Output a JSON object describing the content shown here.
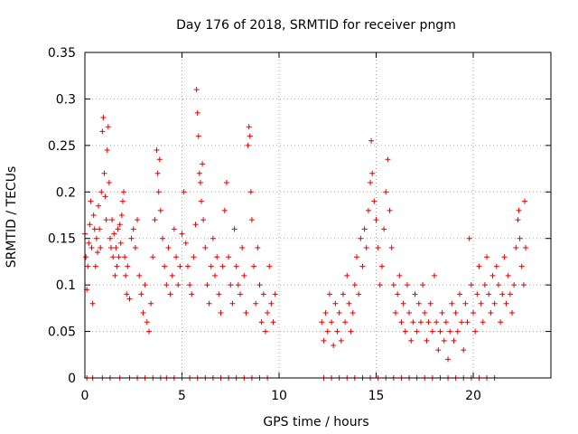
{
  "chart_data": {
    "type": "scatter",
    "title": "Day 176 of 2018, SRMTID for receiver pngm",
    "xlabel": "GPS time / hours",
    "ylabel": "SRMTID / TECUs",
    "xlim": [
      0,
      24
    ],
    "ylim": [
      0,
      0.35
    ],
    "x_ticks": [
      "0",
      "5",
      "10",
      "15",
      "20"
    ],
    "x_tick_values": [
      0,
      5,
      10,
      15,
      20
    ],
    "y_ticks": [
      "0",
      "0.05",
      "0.1",
      "0.15",
      "0.2",
      "0.25",
      "0.3",
      "0.35"
    ],
    "y_tick_values": [
      0,
      0.05,
      0.1,
      0.15,
      0.2,
      0.25,
      0.3,
      0.35
    ],
    "grid": true,
    "marker": "+",
    "color": "#e00000",
    "series": [
      {
        "name": "SRMTID",
        "points": [
          [
            0.0,
            0.155
          ],
          [
            0.05,
            0.13
          ],
          [
            0.1,
            0.095
          ],
          [
            0.15,
            0.12
          ],
          [
            0.2,
            0.145
          ],
          [
            0.25,
            0.165
          ],
          [
            0.3,
            0.19
          ],
          [
            0.35,
            0.14
          ],
          [
            0.4,
            0.08
          ],
          [
            0.45,
            0.175
          ],
          [
            0.5,
            0.16
          ],
          [
            0.55,
            0.12
          ],
          [
            0.6,
            0.15
          ],
          [
            0.65,
            0.135
          ],
          [
            0.7,
            0.185
          ],
          [
            0.75,
            0.16
          ],
          [
            0.8,
            0.14
          ],
          [
            0.85,
            0.2
          ],
          [
            0.9,
            0.265
          ],
          [
            0.95,
            0.28
          ],
          [
            1.0,
            0.22
          ],
          [
            1.05,
            0.195
          ],
          [
            1.1,
            0.17
          ],
          [
            1.15,
            0.245
          ],
          [
            1.2,
            0.27
          ],
          [
            1.25,
            0.21
          ],
          [
            1.3,
            0.15
          ],
          [
            1.35,
            0.14
          ],
          [
            1.4,
            0.17
          ],
          [
            1.45,
            0.13
          ],
          [
            1.5,
            0.155
          ],
          [
            1.55,
            0.11
          ],
          [
            1.6,
            0.14
          ],
          [
            1.65,
            0.12
          ],
          [
            1.7,
            0.16
          ],
          [
            1.75,
            0.13
          ],
          [
            1.8,
            0.165
          ],
          [
            1.85,
            0.145
          ],
          [
            1.9,
            0.175
          ],
          [
            1.95,
            0.19
          ],
          [
            2.0,
            0.2
          ],
          [
            2.05,
            0.13
          ],
          [
            2.1,
            0.11
          ],
          [
            2.15,
            0.09
          ],
          [
            2.2,
            0.12
          ],
          [
            2.3,
            0.085
          ],
          [
            2.4,
            0.15
          ],
          [
            2.5,
            0.16
          ],
          [
            2.6,
            0.14
          ],
          [
            2.7,
            0.17
          ],
          [
            2.8,
            0.11
          ],
          [
            2.9,
            0.09
          ],
          [
            3.0,
            0.07
          ],
          [
            3.1,
            0.1
          ],
          [
            3.2,
            0.06
          ],
          [
            3.3,
            0.05
          ],
          [
            3.4,
            0.08
          ],
          [
            3.5,
            0.13
          ],
          [
            3.6,
            0.17
          ],
          [
            3.7,
            0.245
          ],
          [
            3.75,
            0.22
          ],
          [
            3.8,
            0.2
          ],
          [
            3.85,
            0.235
          ],
          [
            3.9,
            0.18
          ],
          [
            4.0,
            0.15
          ],
          [
            4.1,
            0.12
          ],
          [
            4.2,
            0.1
          ],
          [
            4.3,
            0.14
          ],
          [
            4.4,
            0.09
          ],
          [
            4.5,
            0.11
          ],
          [
            4.6,
            0.16
          ],
          [
            4.7,
            0.13
          ],
          [
            4.8,
            0.1
          ],
          [
            4.9,
            0.12
          ],
          [
            5.0,
            0.155
          ],
          [
            5.1,
            0.2
          ],
          [
            5.2,
            0.145
          ],
          [
            5.3,
            0.12
          ],
          [
            5.4,
            0.1
          ],
          [
            5.5,
            0.09
          ],
          [
            5.6,
            0.13
          ],
          [
            5.7,
            0.165
          ],
          [
            5.75,
            0.31
          ],
          [
            5.8,
            0.285
          ],
          [
            5.85,
            0.26
          ],
          [
            5.9,
            0.22
          ],
          [
            5.95,
            0.21
          ],
          [
            6.0,
            0.19
          ],
          [
            6.05,
            0.23
          ],
          [
            6.1,
            0.17
          ],
          [
            6.2,
            0.14
          ],
          [
            6.3,
            0.1
          ],
          [
            6.4,
            0.08
          ],
          [
            6.5,
            0.12
          ],
          [
            6.6,
            0.15
          ],
          [
            6.7,
            0.11
          ],
          [
            6.8,
            0.13
          ],
          [
            6.9,
            0.09
          ],
          [
            7.0,
            0.07
          ],
          [
            7.1,
            0.12
          ],
          [
            7.2,
            0.18
          ],
          [
            7.3,
            0.21
          ],
          [
            7.4,
            0.13
          ],
          [
            7.5,
            0.1
          ],
          [
            7.6,
            0.08
          ],
          [
            7.7,
            0.16
          ],
          [
            7.8,
            0.12
          ],
          [
            7.9,
            0.1
          ],
          [
            8.0,
            0.09
          ],
          [
            8.1,
            0.14
          ],
          [
            8.2,
            0.11
          ],
          [
            8.3,
            0.07
          ],
          [
            8.4,
            0.25
          ],
          [
            8.45,
            0.27
          ],
          [
            8.5,
            0.26
          ],
          [
            8.55,
            0.2
          ],
          [
            8.6,
            0.17
          ],
          [
            8.7,
            0.12
          ],
          [
            8.8,
            0.08
          ],
          [
            8.9,
            0.14
          ],
          [
            9.0,
            0.1
          ],
          [
            9.1,
            0.06
          ],
          [
            9.2,
            0.09
          ],
          [
            9.3,
            0.05
          ],
          [
            9.4,
            0.07
          ],
          [
            9.5,
            0.12
          ],
          [
            9.6,
            0.08
          ],
          [
            9.7,
            0.06
          ],
          [
            9.8,
            0.09
          ],
          [
            12.2,
            0.06
          ],
          [
            12.3,
            0.04
          ],
          [
            12.4,
            0.07
          ],
          [
            12.5,
            0.05
          ],
          [
            12.6,
            0.09
          ],
          [
            12.7,
            0.06
          ],
          [
            12.8,
            0.035
          ],
          [
            12.9,
            0.08
          ],
          [
            13.0,
            0.05
          ],
          [
            13.1,
            0.07
          ],
          [
            13.2,
            0.04
          ],
          [
            13.3,
            0.09
          ],
          [
            13.4,
            0.06
          ],
          [
            13.5,
            0.11
          ],
          [
            13.6,
            0.08
          ],
          [
            13.7,
            0.05
          ],
          [
            13.8,
            0.07
          ],
          [
            13.9,
            0.1
          ],
          [
            14.0,
            0.13
          ],
          [
            14.1,
            0.09
          ],
          [
            14.2,
            0.15
          ],
          [
            14.3,
            0.12
          ],
          [
            14.4,
            0.16
          ],
          [
            14.5,
            0.14
          ],
          [
            14.6,
            0.18
          ],
          [
            14.7,
            0.21
          ],
          [
            14.75,
            0.255
          ],
          [
            14.8,
            0.22
          ],
          [
            14.9,
            0.19
          ],
          [
            15.0,
            0.17
          ],
          [
            15.1,
            0.14
          ],
          [
            15.2,
            0.1
          ],
          [
            15.3,
            0.12
          ],
          [
            15.4,
            0.16
          ],
          [
            15.5,
            0.2
          ],
          [
            15.6,
            0.235
          ],
          [
            15.7,
            0.18
          ],
          [
            15.8,
            0.14
          ],
          [
            15.9,
            0.1
          ],
          [
            16.0,
            0.07
          ],
          [
            16.1,
            0.09
          ],
          [
            16.2,
            0.11
          ],
          [
            16.3,
            0.06
          ],
          [
            16.4,
            0.08
          ],
          [
            16.5,
            0.05
          ],
          [
            16.6,
            0.1
          ],
          [
            16.7,
            0.07
          ],
          [
            16.8,
            0.04
          ],
          [
            16.9,
            0.06
          ],
          [
            17.0,
            0.09
          ],
          [
            17.1,
            0.05
          ],
          [
            17.2,
            0.08
          ],
          [
            17.3,
            0.06
          ],
          [
            17.4,
            0.1
          ],
          [
            17.5,
            0.07
          ],
          [
            17.6,
            0.04
          ],
          [
            17.7,
            0.06
          ],
          [
            17.8,
            0.08
          ],
          [
            17.9,
            0.05
          ],
          [
            18.0,
            0.11
          ],
          [
            18.1,
            0.06
          ],
          [
            18.2,
            0.03
          ],
          [
            18.3,
            0.05
          ],
          [
            18.4,
            0.07
          ],
          [
            18.5,
            0.04
          ],
          [
            18.6,
            0.06
          ],
          [
            18.7,
            0.02
          ],
          [
            18.8,
            0.05
          ],
          [
            18.9,
            0.08
          ],
          [
            19.0,
            0.04
          ],
          [
            19.1,
            0.07
          ],
          [
            19.2,
            0.05
          ],
          [
            19.3,
            0.09
          ],
          [
            19.4,
            0.06
          ],
          [
            19.5,
            0.03
          ],
          [
            19.6,
            0.08
          ],
          [
            19.7,
            0.06
          ],
          [
            19.8,
            0.15
          ],
          [
            19.9,
            0.1
          ],
          [
            20.0,
            0.07
          ],
          [
            20.1,
            0.05
          ],
          [
            20.2,
            0.09
          ],
          [
            20.3,
            0.12
          ],
          [
            20.4,
            0.08
          ],
          [
            20.5,
            0.06
          ],
          [
            20.6,
            0.1
          ],
          [
            20.7,
            0.13
          ],
          [
            20.8,
            0.09
          ],
          [
            20.9,
            0.07
          ],
          [
            21.0,
            0.11
          ],
          [
            21.1,
            0.08
          ],
          [
            21.2,
            0.12
          ],
          [
            21.3,
            0.1
          ],
          [
            21.4,
            0.06
          ],
          [
            21.5,
            0.09
          ],
          [
            21.6,
            0.13
          ],
          [
            21.7,
            0.08
          ],
          [
            21.8,
            0.11
          ],
          [
            21.9,
            0.09
          ],
          [
            22.0,
            0.07
          ],
          [
            22.1,
            0.1
          ],
          [
            22.2,
            0.14
          ],
          [
            22.3,
            0.17
          ],
          [
            22.35,
            0.18
          ],
          [
            22.4,
            0.15
          ],
          [
            22.5,
            0.12
          ],
          [
            22.6,
            0.1
          ],
          [
            22.65,
            0.19
          ],
          [
            22.7,
            0.14
          ],
          [
            0.1,
            0.0
          ],
          [
            0.4,
            0.0
          ],
          [
            0.9,
            0.0
          ],
          [
            1.3,
            0.0
          ],
          [
            1.8,
            0.0
          ],
          [
            2.3,
            0.0
          ],
          [
            2.7,
            0.0
          ],
          [
            3.1,
            0.0
          ],
          [
            3.5,
            0.0
          ],
          [
            3.9,
            0.0
          ],
          [
            4.2,
            0.0
          ],
          [
            4.6,
            0.0
          ],
          [
            5.0,
            0.0
          ],
          [
            5.4,
            0.0
          ],
          [
            5.8,
            0.0
          ],
          [
            6.2,
            0.0
          ],
          [
            6.6,
            0.0
          ],
          [
            7.0,
            0.0
          ],
          [
            7.4,
            0.0
          ],
          [
            7.8,
            0.0
          ],
          [
            8.2,
            0.0
          ],
          [
            8.6,
            0.0
          ],
          [
            9.0,
            0.0
          ],
          [
            9.4,
            0.0
          ],
          [
            12.3,
            0.0
          ],
          [
            12.7,
            0.0
          ],
          [
            13.1,
            0.0
          ],
          [
            13.5,
            0.0
          ],
          [
            13.9,
            0.0
          ],
          [
            14.3,
            0.0
          ],
          [
            14.7,
            0.0
          ],
          [
            15.1,
            0.0
          ],
          [
            15.5,
            0.0
          ],
          [
            15.9,
            0.0
          ],
          [
            16.3,
            0.0
          ],
          [
            16.7,
            0.0
          ],
          [
            17.1,
            0.0
          ],
          [
            17.5,
            0.0
          ],
          [
            17.9,
            0.0
          ],
          [
            18.3,
            0.0
          ],
          [
            18.7,
            0.0
          ],
          [
            19.1,
            0.0
          ],
          [
            19.5,
            0.0
          ],
          [
            19.9,
            0.0
          ],
          [
            20.3,
            0.0
          ],
          [
            20.7,
            0.0
          ],
          [
            21.1,
            0.0
          ]
        ]
      }
    ]
  }
}
